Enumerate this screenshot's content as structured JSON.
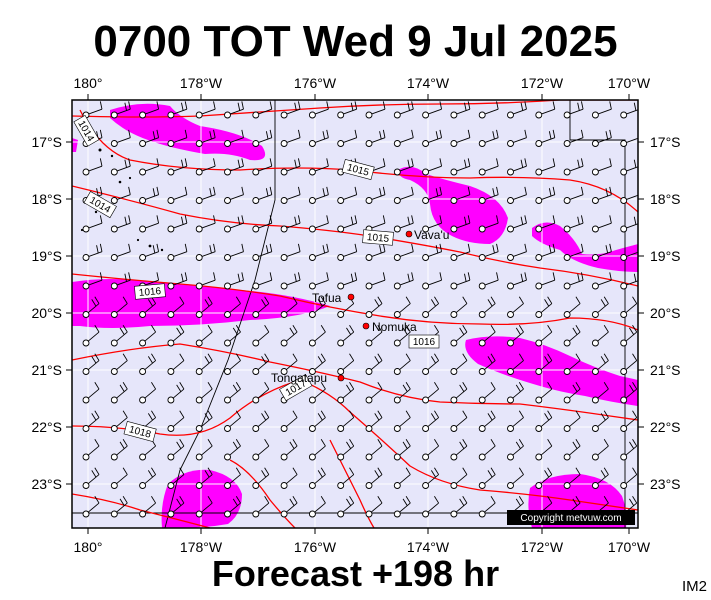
{
  "title": "0700 TOT Wed 9 Jul 2025",
  "footer": "Forecast +198 hr",
  "corner_label": "IM2",
  "copyright": "Copyright metvuw.com",
  "colors": {
    "ocean": "#e6e6fa",
    "rain": "#ff00ff",
    "isobar": "#ff0000",
    "barb": "#000000",
    "place_dot": "#ff0000"
  },
  "axes": {
    "lon_labels": [
      "180°",
      "178°W",
      "176°W",
      "174°W",
      "172°W",
      "170°W"
    ],
    "lat_labels": [
      "17°S",
      "18°S",
      "19°S",
      "20°S",
      "21°S",
      "22°S",
      "23°S"
    ]
  },
  "places": [
    {
      "name": "Vava'u"
    },
    {
      "name": "Tofua"
    },
    {
      "name": "Nomuka"
    },
    {
      "name": "Tongatapu"
    }
  ],
  "isobar_labels": [
    "1014",
    "1015",
    "1014",
    "1015",
    "1016",
    "1016",
    "1017",
    "1018"
  ]
}
